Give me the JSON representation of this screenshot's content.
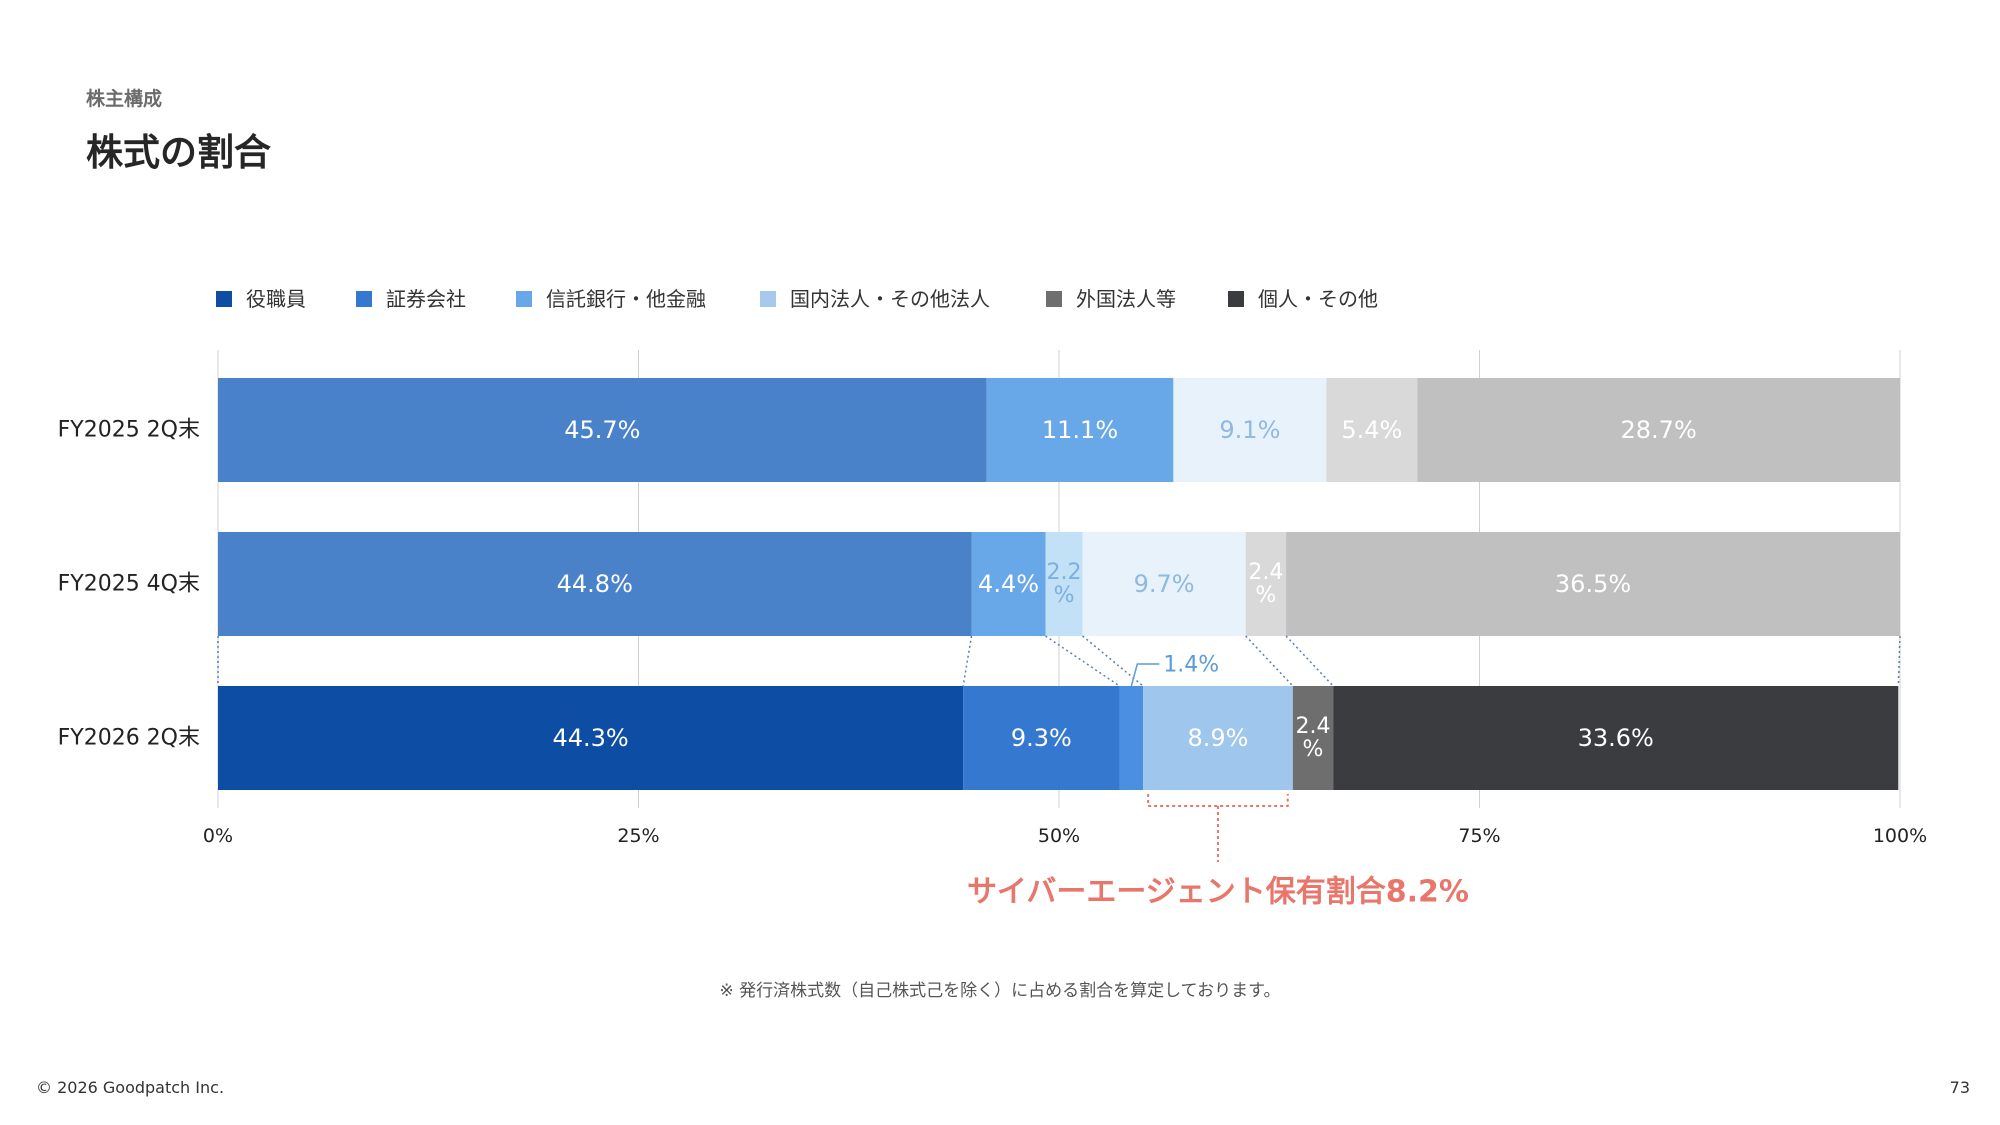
{
  "header": {
    "eyebrow": "株主構成",
    "title": "株式の割合"
  },
  "footnote": "※ 発行済株式数（自己株式己を除く）に占める割合を算定しております。",
  "footer": {
    "copyright": "© 2026 Goodpatch Inc.",
    "page_number": "73"
  },
  "chart_data": {
    "type": "bar",
    "orientation": "horizontal-stacked-100",
    "series_names": [
      "役職員",
      "証券会社",
      "信託銀行・他金融",
      "国内法人・その他法人",
      "外国法人等",
      "個人・その他"
    ],
    "legend": {
      "placement": "top-left"
    },
    "xlim": [
      0,
      100
    ],
    "x_ticks": [
      "0%",
      "25%",
      "50%",
      "75%",
      "100%"
    ],
    "grid": true,
    "rows": [
      {
        "label": "FY2025 2Q末",
        "style": "faded",
        "segments": [
          {
            "value": 45.7,
            "label": "45.7%",
            "color": "#4a82c9",
            "text_color": "#ffffff"
          },
          {
            "value": 11.1,
            "label": "11.1%",
            "color": "#68a8e8",
            "text_color": "#ffffff"
          },
          {
            "value": 9.1,
            "label": "9.1%",
            "color": "#e8f2fb",
            "text_color": "#90b8e0"
          },
          {
            "value": 5.4,
            "label": "5.4%",
            "color": "#d9d9d9",
            "text_color": "#ffffff"
          },
          {
            "value": 28.7,
            "label": "28.7%",
            "color": "#c0c0c0",
            "text_color": "#ffffff"
          }
        ]
      },
      {
        "label": "FY2025 4Q末",
        "style": "faded",
        "segments": [
          {
            "value": 44.8,
            "label": "44.8%",
            "color": "#4a82c9",
            "text_color": "#ffffff"
          },
          {
            "value": 4.4,
            "label": "4.4%",
            "color": "#68a8e8",
            "text_color": "#ffffff"
          },
          {
            "value": 2.2,
            "label": "2.2\n%",
            "color": "#c2e0f6",
            "text_color": "#7ab0e0"
          },
          {
            "value": 9.7,
            "label": "9.7%",
            "color": "#e8f2fb",
            "text_color": "#90b8e0"
          },
          {
            "value": 2.4,
            "label": "2.4\n%",
            "color": "#d9d9d9",
            "text_color": "#ffffff"
          },
          {
            "value": 36.5,
            "label": "36.5%",
            "color": "#c0c0c0",
            "text_color": "#ffffff"
          }
        ]
      },
      {
        "label": "FY2026 2Q末",
        "style": "solid",
        "segments": [
          {
            "value": 44.3,
            "label": "44.3%",
            "color": "#0d4da3",
            "text_color": "#ffffff"
          },
          {
            "value": 9.3,
            "label": "9.3%",
            "color": "#3478cf",
            "text_color": "#ffffff"
          },
          {
            "value": 1.4,
            "label": "",
            "color": "#4a8fe0",
            "text_color": "#ffffff"
          },
          {
            "value": 8.9,
            "label": "8.9%",
            "color": "#9fc6ec",
            "text_color": "#ffffff"
          },
          {
            "value": 2.4,
            "label": "2.4\n%",
            "color": "#6e6e6e",
            "text_color": "#ffffff"
          },
          {
            "value": 33.6,
            "label": "33.6%",
            "color": "#3a3c40",
            "text_color": "#ffffff"
          }
        ]
      }
    ],
    "callout_small": {
      "label": "1.4%",
      "color": "#5c9bd8"
    },
    "annotation": {
      "text": "サイバーエージェント保有割合8.2%",
      "color": "#e8766a",
      "span_start": 55.3,
      "span_end": 63.6
    },
    "colors": {
      "legend": [
        "#0d4da3",
        "#3478cf",
        "#68a8e8",
        "#a6c9ec",
        "#6e6e6e",
        "#3a3c40"
      ],
      "grid": "#d0d0d0",
      "connector": "#5a7fa8"
    }
  }
}
